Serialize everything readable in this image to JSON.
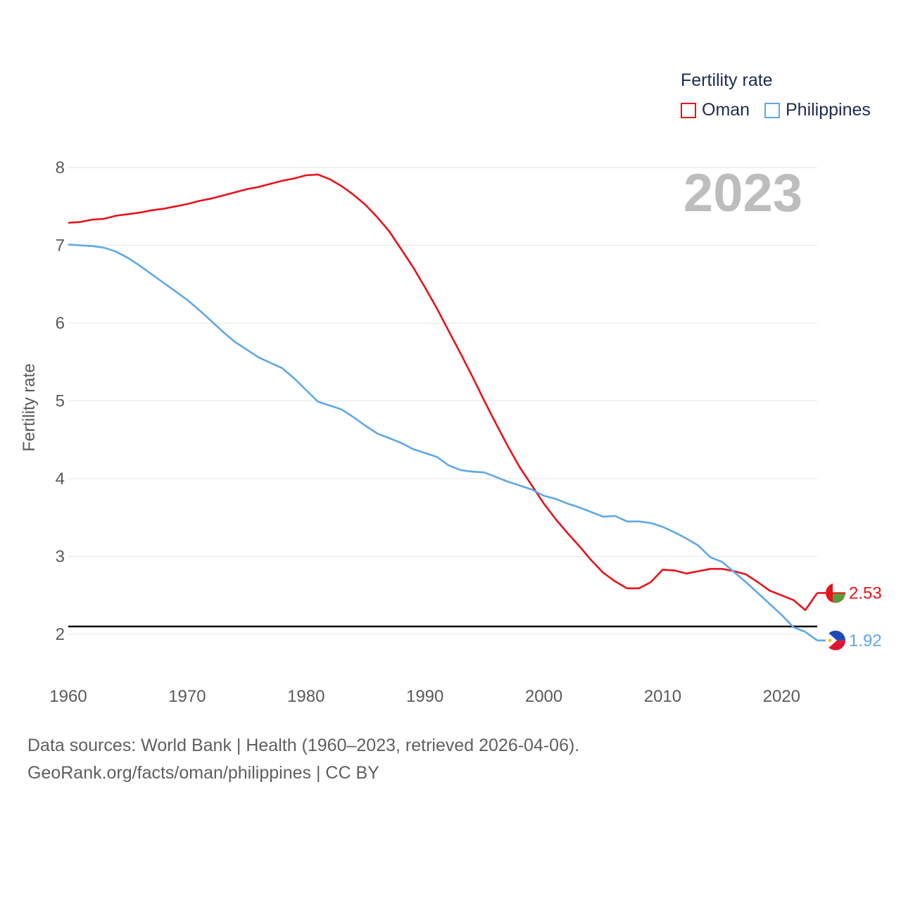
{
  "legend": {
    "title": "Fertility rate",
    "items": [
      {
        "name": "Oman",
        "color": "#e8121a"
      },
      {
        "name": "Philippines",
        "color": "#5ea7e8"
      }
    ]
  },
  "year_watermark": "2023",
  "end_labels": {
    "oman": "2.53",
    "philippines": "1.92"
  },
  "source": {
    "line1": "Data sources: World Bank | Health (1960–2023, retrieved 2026-04-06).",
    "line2": "GeoRank.org/facts/oman/philippines | CC BY"
  },
  "chart_data": {
    "type": "line",
    "title": "",
    "xlabel": "",
    "ylabel": "Fertility rate",
    "xlim": [
      1960,
      2023
    ],
    "ylim": [
      1.5,
      8.3
    ],
    "x_ticks": [
      1960,
      1970,
      1980,
      1990,
      2000,
      2010,
      2020
    ],
    "y_ticks": [
      2,
      3,
      4,
      5,
      6,
      7,
      8
    ],
    "reference_line": {
      "y": 2.1,
      "color": "#000000"
    },
    "x": [
      1960,
      1961,
      1962,
      1963,
      1964,
      1965,
      1966,
      1967,
      1968,
      1969,
      1970,
      1971,
      1972,
      1973,
      1974,
      1975,
      1976,
      1977,
      1978,
      1979,
      1980,
      1981,
      1982,
      1983,
      1984,
      1985,
      1986,
      1987,
      1988,
      1989,
      1990,
      1991,
      1992,
      1993,
      1994,
      1995,
      1996,
      1997,
      1998,
      1999,
      2000,
      2001,
      2002,
      2003,
      2004,
      2005,
      2006,
      2007,
      2008,
      2009,
      2010,
      2011,
      2012,
      2013,
      2014,
      2015,
      2016,
      2017,
      2018,
      2019,
      2020,
      2021,
      2022,
      2023
    ],
    "series": [
      {
        "name": "Oman",
        "color": "#e8121a",
        "values": [
          7.29,
          7.3,
          7.33,
          7.34,
          7.38,
          7.4,
          7.42,
          7.45,
          7.47,
          7.5,
          7.53,
          7.57,
          7.6,
          7.64,
          7.68,
          7.72,
          7.75,
          7.79,
          7.83,
          7.86,
          7.9,
          7.91,
          7.85,
          7.76,
          7.65,
          7.52,
          7.36,
          7.18,
          6.95,
          6.72,
          6.46,
          6.19,
          5.9,
          5.61,
          5.31,
          5.0,
          4.7,
          4.41,
          4.14,
          3.91,
          3.68,
          3.48,
          3.3,
          3.13,
          2.95,
          2.79,
          2.68,
          2.59,
          2.59,
          2.67,
          2.83,
          2.82,
          2.78,
          2.81,
          2.84,
          2.84,
          2.81,
          2.77,
          2.67,
          2.56,
          2.5,
          2.44,
          2.31,
          2.53
        ]
      },
      {
        "name": "Philippines",
        "color": "#5ea7e8",
        "values": [
          7.01,
          7.0,
          6.99,
          6.97,
          6.92,
          6.84,
          6.74,
          6.63,
          6.52,
          6.41,
          6.3,
          6.17,
          6.03,
          5.89,
          5.76,
          5.66,
          5.56,
          5.49,
          5.42,
          5.29,
          5.14,
          4.99,
          4.94,
          4.89,
          4.79,
          4.68,
          4.58,
          4.52,
          4.46,
          4.38,
          4.33,
          4.28,
          4.17,
          4.11,
          4.09,
          4.08,
          4.02,
          3.96,
          3.91,
          3.86,
          3.78,
          3.74,
          3.68,
          3.63,
          3.57,
          3.51,
          3.52,
          3.45,
          3.45,
          3.43,
          3.38,
          3.31,
          3.23,
          3.14,
          2.99,
          2.93,
          2.8,
          2.67,
          2.53,
          2.39,
          2.25,
          2.09,
          2.03,
          1.92
        ]
      }
    ]
  }
}
